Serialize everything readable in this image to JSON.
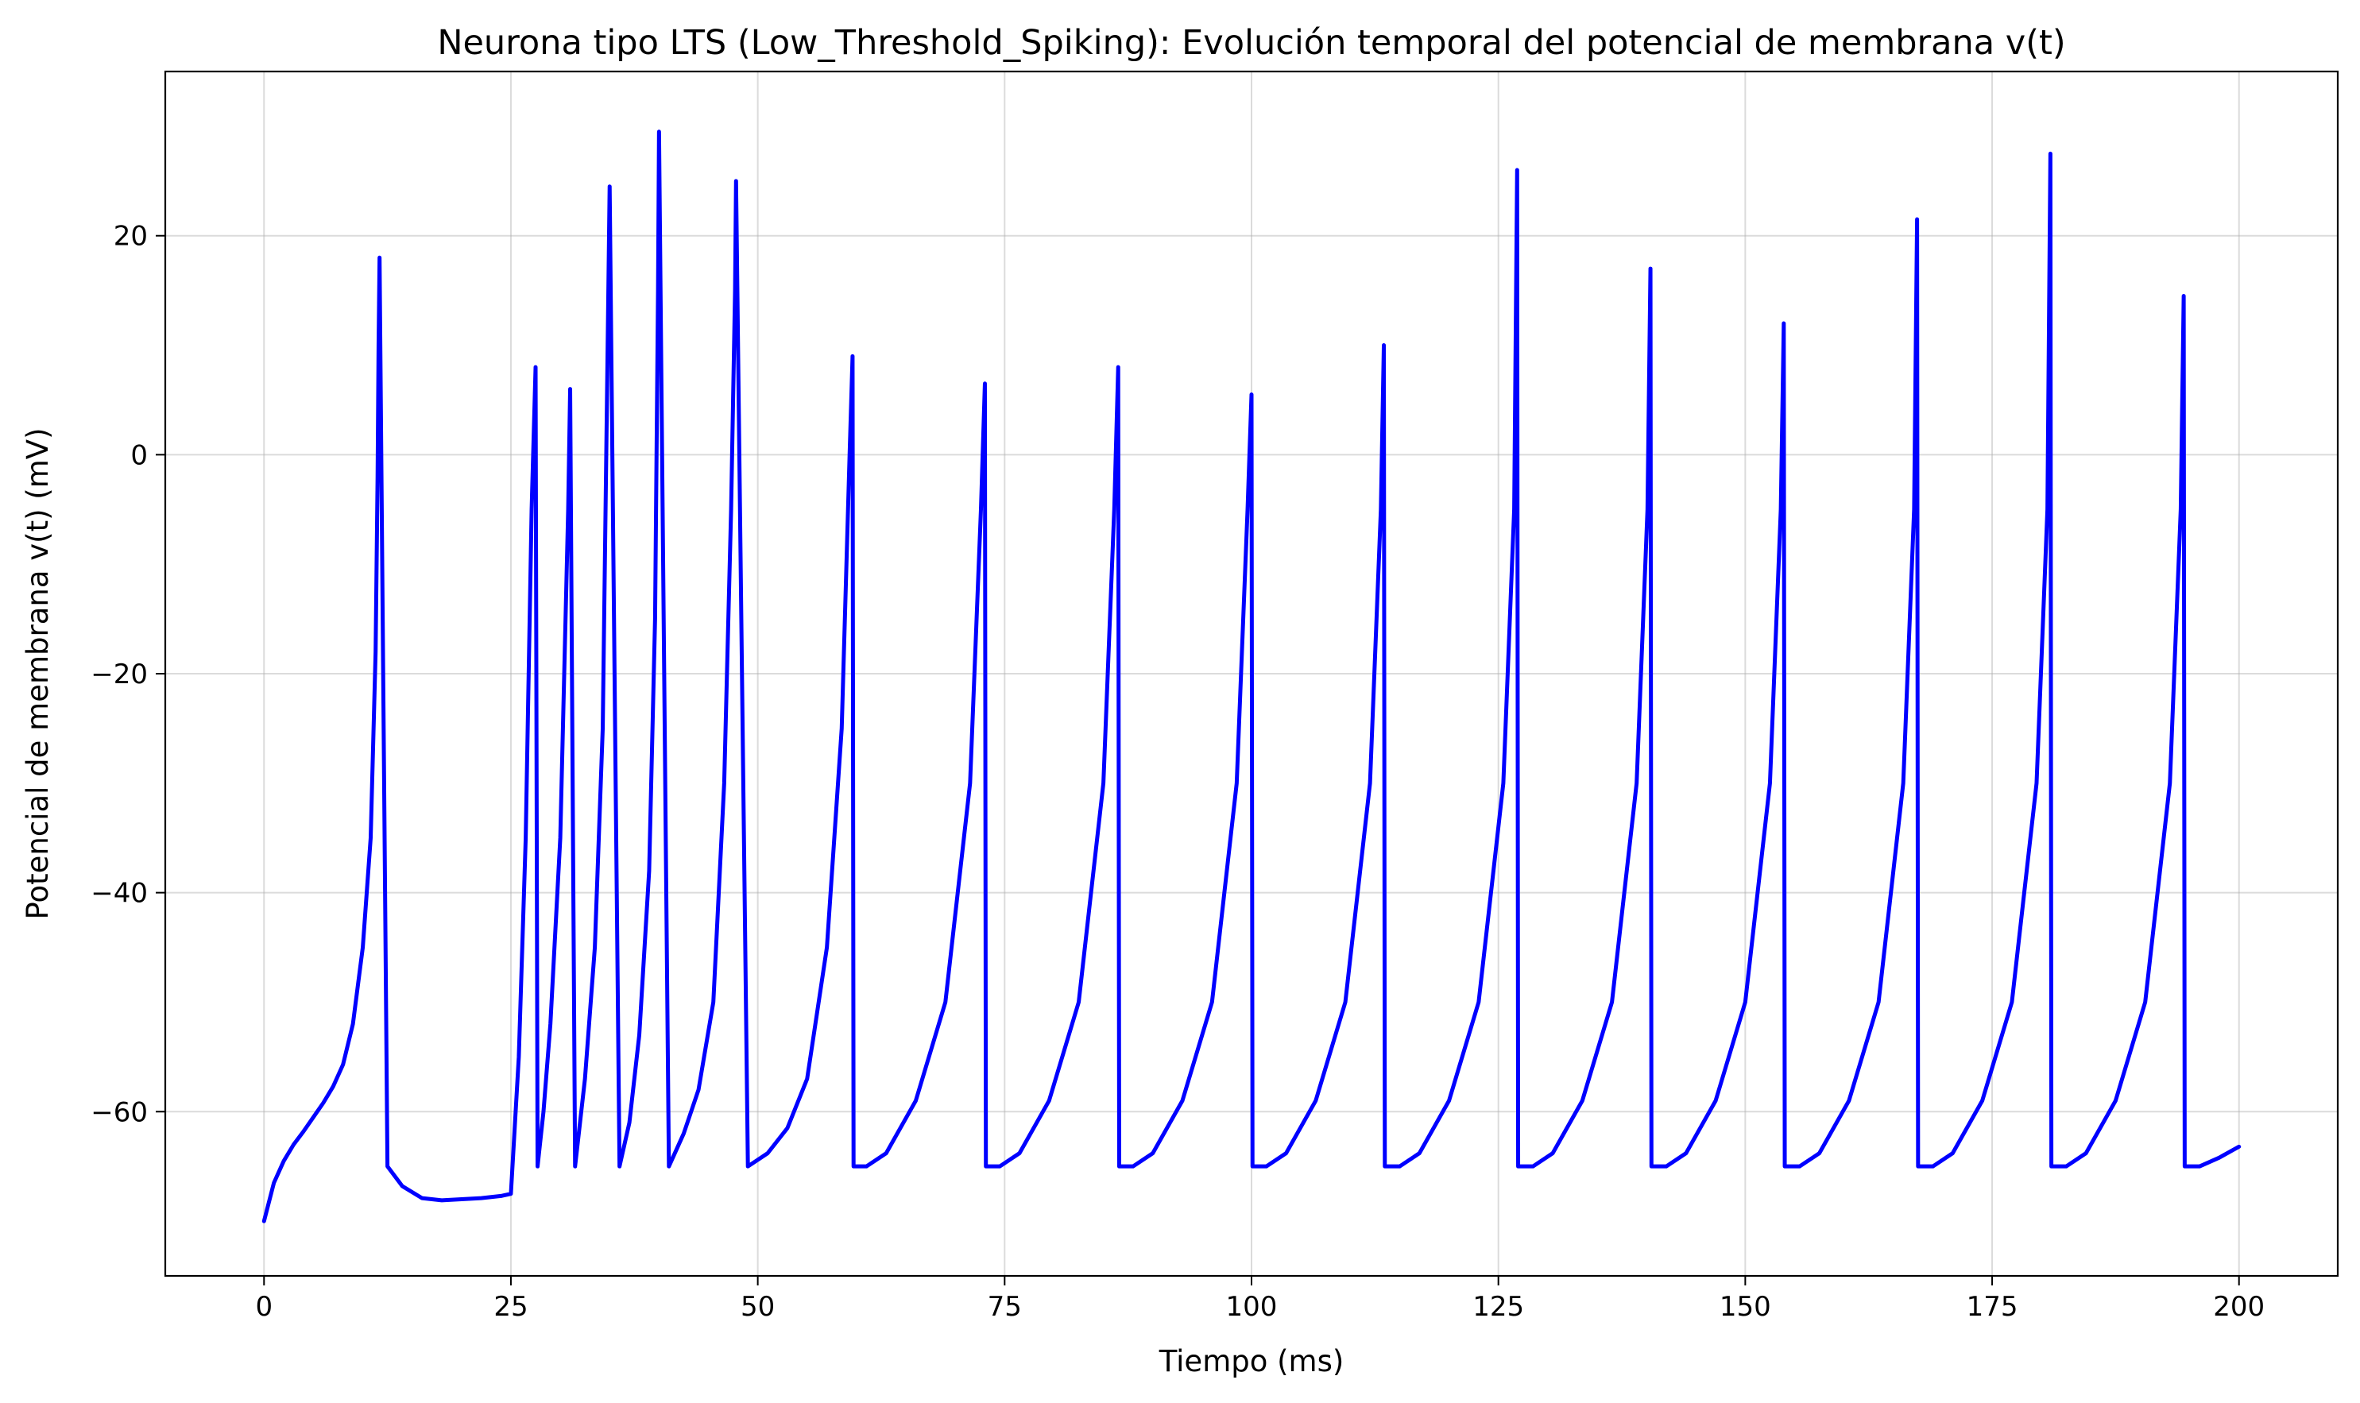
{
  "chart_data": {
    "type": "line",
    "title": "Neurona tipo LTS (Low_Threshold_Spiking): Evolución temporal del potencial de membrana v(t)",
    "xlabel": "Tiempo (ms)",
    "ylabel": "Potencial de membrana v(t) (mV)",
    "xlim": [
      -10,
      210
    ],
    "ylim": [
      -75,
      35
    ],
    "xticks": [
      0,
      25,
      50,
      75,
      100,
      125,
      150,
      175,
      200
    ],
    "yticks": [
      -60,
      -40,
      -20,
      0,
      20
    ],
    "xtick_labels": [
      "0",
      "25",
      "50",
      "75",
      "100",
      "125",
      "150",
      "175",
      "200"
    ],
    "ytick_labels": [
      "−60",
      "−40",
      "−20",
      "0",
      "20"
    ],
    "grid": true,
    "line_color": "#0000ff",
    "series": [
      {
        "x": [
          0,
          1,
          2,
          3,
          4,
          5,
          6,
          7,
          8,
          9,
          10,
          10.8,
          11.3,
          11.5,
          11.6,
          11.7,
          12.5,
          14,
          16,
          18,
          20,
          22,
          24,
          25,
          25.8,
          26.5,
          27.1,
          27.5,
          27.7,
          28.3,
          29,
          30,
          30.8,
          31.0,
          31.5,
          32.5,
          33.5,
          34.3,
          34.8,
          35.0,
          36,
          37,
          38,
          39,
          39.6,
          39.9,
          40.0,
          41,
          42.5,
          44,
          45.5,
          46.6,
          47.3,
          47.7,
          47.8,
          49,
          51,
          53,
          55,
          57,
          58.5,
          59.3,
          59.6,
          59.7,
          61,
          63,
          66,
          69,
          71.5,
          72.6,
          73.0,
          73.1,
          74.5,
          76.5,
          79.5,
          82.5,
          85,
          86.1,
          86.5,
          86.6,
          88,
          90,
          93,
          96,
          98.5,
          99.6,
          100.0,
          100.1,
          101.5,
          103.5,
          106.5,
          109.5,
          112,
          113.1,
          113.4,
          113.5,
          115,
          117,
          120,
          123,
          125.5,
          126.6,
          126.9,
          127.0,
          128.5,
          130.5,
          133.5,
          136.5,
          139,
          140.1,
          140.4,
          140.5,
          142,
          144,
          147,
          150,
          152.5,
          153.6,
          153.9,
          154.0,
          155.5,
          157.5,
          160.5,
          163.5,
          166,
          167.1,
          167.4,
          167.5,
          169,
          171,
          174,
          177,
          179.5,
          180.6,
          180.9,
          181.0,
          182.5,
          184.5,
          187.5,
          190.5,
          193,
          194.1,
          194.4,
          194.5,
          196,
          198,
          200
        ],
        "y": [
          -70,
          -66.5,
          -64.5,
          -63,
          -61.8,
          -60.5,
          -59.2,
          -57.7,
          -55.7,
          -52,
          -45,
          -35,
          -18,
          -2,
          10,
          18,
          -65,
          -66.8,
          -67.9,
          -68.1,
          -68,
          -67.9,
          -67.7,
          -67.5,
          -55,
          -35,
          -5,
          8,
          -65,
          -60,
          -52,
          -35,
          -5,
          6,
          -65,
          -57,
          -45,
          -25,
          10,
          24.5,
          -65,
          -61,
          -53,
          -38,
          -15,
          15,
          29.5,
          -65,
          -62,
          -58,
          -50,
          -30,
          -5,
          15,
          25,
          -65,
          -63.8,
          -61.5,
          -57,
          -45,
          -25,
          0,
          9,
          -65,
          -65,
          -63.8,
          -59,
          -50,
          -30,
          -5,
          6.5,
          -65,
          -65,
          -63.8,
          -59,
          -50,
          -30,
          -5,
          8,
          -65,
          -65,
          -63.8,
          -59,
          -50,
          -30,
          -5,
          5.5,
          -65,
          -65,
          -63.8,
          -59,
          -50,
          -30,
          -5,
          10,
          -65,
          -65,
          -63.8,
          -59,
          -50,
          -30,
          -5,
          26,
          -65,
          -65,
          -63.8,
          -59,
          -50,
          -30,
          -5,
          17,
          -65,
          -65,
          -63.8,
          -59,
          -50,
          -30,
          -5,
          12,
          -65,
          -65,
          -63.8,
          -59,
          -50,
          -30,
          -5,
          21.5,
          -65,
          -65,
          -63.8,
          -59,
          -50,
          -30,
          -5,
          27.5,
          -65,
          -65,
          -63.8,
          -59,
          -50,
          -30,
          -5,
          14.5,
          -65,
          -65,
          -64.2,
          -63.2
        ]
      }
    ]
  }
}
